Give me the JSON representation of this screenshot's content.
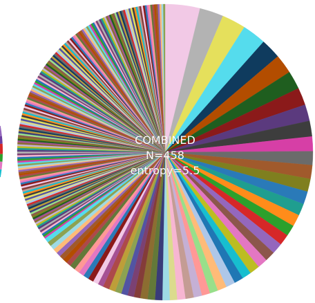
{
  "chart_data": {
    "type": "pie",
    "title": "",
    "center_label": [
      "COMBINED",
      "N=458",
      "entropy=5.5"
    ],
    "total_count": 458,
    "slice_shares_percent": [
      3.8,
      2.6,
      2.6,
      2.6,
      2.2,
      2.1,
      2.0,
      1.9,
      1.8,
      1.7,
      1.6,
      1.5,
      1.5,
      1.4,
      1.4,
      1.3,
      1.3,
      1.2,
      1.2,
      1.2,
      1.1,
      1.1,
      1.1,
      1.0,
      1.0,
      1.0,
      1.0,
      0.9,
      0.9,
      0.9,
      0.9,
      0.9,
      0.8,
      0.8,
      0.8,
      0.8,
      0.8,
      0.7,
      0.7,
      0.7,
      0.7,
      0.7,
      0.7,
      0.6,
      0.6,
      0.6,
      0.6,
      0.6,
      0.6,
      0.6,
      0.5,
      0.5,
      0.5,
      0.5,
      0.5,
      0.5,
      0.5,
      0.5
    ],
    "tail_slice_count": 175,
    "slice_colors": [
      "#f2c9e6",
      "#b3b3b3",
      "#e5e05c",
      "#55dced",
      "#0f3b5e",
      "#b34d00",
      "#1f5e1f",
      "#8b1a1a",
      "#5b3a7e",
      "#3d3d3d",
      "#d63fa6",
      "#6b6b6b",
      "#a05a2c",
      "#7f7f1f",
      "#2a7ab8",
      "#1f9e8f",
      "#ff8c1a",
      "#2ca02c",
      "#d62728",
      "#9467bd",
      "#8c564b",
      "#e377c2",
      "#bcbd22",
      "#17becf",
      "#1f77b4",
      "#aec7e8",
      "#ffbb78",
      "#98df8a",
      "#ff9896",
      "#c5b0d5",
      "#c49c94",
      "#f7b6d2",
      "#dbdb8d",
      "#9edae5",
      "#393b79",
      "#637939",
      "#8c6d31",
      "#843c39",
      "#7b4173",
      "#5254a3",
      "#8ca252",
      "#bd9e39",
      "#ad494a",
      "#a55194"
    ],
    "start_angle_deg": 0,
    "direction": "clockwise"
  }
}
